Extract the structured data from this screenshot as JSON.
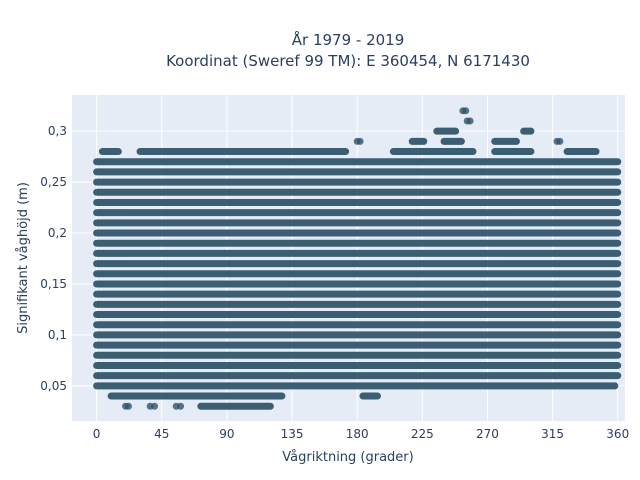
{
  "chart_data": {
    "type": "scatter",
    "title_line1": "År 1979 - 2019",
    "title_line2": "Koordinat (Sweref 99 TM): E 360454, N 6171430",
    "xlabel": "Vågriktning (grader)",
    "ylabel": "Signifikant våghöjd (m)",
    "xlim": [
      -17,
      365
    ],
    "ylim": [
      0.0155,
      0.3355
    ],
    "xticks": [
      0,
      45,
      90,
      135,
      180,
      225,
      270,
      315,
      360
    ],
    "xtick_labels": [
      "0",
      "45",
      "90",
      "135",
      "180",
      "225",
      "270",
      "315",
      "360"
    ],
    "yticks": [
      0.05,
      0.1,
      0.15,
      0.2,
      0.25,
      0.3
    ],
    "ytick_labels": [
      "0,05",
      "0,1",
      "0,15",
      "0,2",
      "0,25",
      "0,3"
    ],
    "grid": true,
    "marker_color": "#2e5166",
    "plot_bg": "#e5ecf6",
    "bands": [
      {
        "y": 0.03,
        "x": [
          [
            20,
            22
          ],
          [
            37,
            40
          ],
          [
            55,
            58
          ],
          [
            72,
            120
          ]
        ]
      },
      {
        "y": 0.04,
        "x": [
          [
            10,
            128
          ],
          [
            184,
            194
          ]
        ]
      },
      {
        "y": 0.05,
        "x": [
          [
            0,
            358
          ]
        ]
      },
      {
        "y": 0.06,
        "x": [
          [
            0,
            360
          ]
        ]
      },
      {
        "y": 0.07,
        "x": [
          [
            0,
            360
          ]
        ]
      },
      {
        "y": 0.08,
        "x": [
          [
            0,
            360
          ]
        ]
      },
      {
        "y": 0.09,
        "x": [
          [
            0,
            360
          ]
        ]
      },
      {
        "y": 0.1,
        "x": [
          [
            0,
            360
          ]
        ]
      },
      {
        "y": 0.11,
        "x": [
          [
            0,
            360
          ]
        ]
      },
      {
        "y": 0.12,
        "x": [
          [
            0,
            360
          ]
        ]
      },
      {
        "y": 0.13,
        "x": [
          [
            0,
            360
          ]
        ]
      },
      {
        "y": 0.14,
        "x": [
          [
            0,
            360
          ]
        ]
      },
      {
        "y": 0.15,
        "x": [
          [
            0,
            360
          ]
        ]
      },
      {
        "y": 0.16,
        "x": [
          [
            0,
            360
          ]
        ]
      },
      {
        "y": 0.17,
        "x": [
          [
            0,
            360
          ]
        ]
      },
      {
        "y": 0.18,
        "x": [
          [
            0,
            360
          ]
        ]
      },
      {
        "y": 0.19,
        "x": [
          [
            0,
            360
          ]
        ]
      },
      {
        "y": 0.2,
        "x": [
          [
            0,
            360
          ]
        ]
      },
      {
        "y": 0.21,
        "x": [
          [
            0,
            360
          ]
        ]
      },
      {
        "y": 0.22,
        "x": [
          [
            0,
            360
          ]
        ]
      },
      {
        "y": 0.23,
        "x": [
          [
            0,
            360
          ]
        ]
      },
      {
        "y": 0.24,
        "x": [
          [
            0,
            360
          ]
        ]
      },
      {
        "y": 0.25,
        "x": [
          [
            0,
            360
          ]
        ]
      },
      {
        "y": 0.26,
        "x": [
          [
            0,
            360
          ]
        ]
      },
      {
        "y": 0.27,
        "x": [
          [
            0,
            360
          ]
        ]
      },
      {
        "y": 0.28,
        "x": [
          [
            4,
            15
          ],
          [
            30,
            172
          ],
          [
            205,
            260
          ],
          [
            275,
            300
          ],
          [
            325,
            345
          ]
        ]
      },
      {
        "y": 0.29,
        "x": [
          [
            180,
            182
          ],
          [
            218,
            226
          ],
          [
            240,
            252
          ],
          [
            275,
            290
          ],
          [
            318,
            320
          ]
        ]
      },
      {
        "y": 0.3,
        "x": [
          [
            235,
            248
          ],
          [
            295,
            300
          ]
        ]
      },
      {
        "y": 0.31,
        "x": [
          [
            256,
            258
          ]
        ]
      },
      {
        "y": 0.32,
        "x": [
          [
            253,
            255
          ]
        ]
      }
    ]
  }
}
